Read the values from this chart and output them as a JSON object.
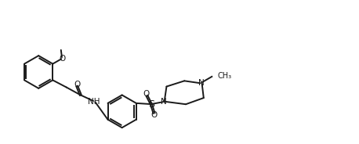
{
  "background": "#ffffff",
  "line_color": "#1a1a1a",
  "line_width": 1.4,
  "font_size": 7.5,
  "fig_width": 4.58,
  "fig_height": 1.84,
  "dpi": 100,
  "xlim": [
    0,
    100
  ],
  "ylim": [
    0,
    40
  ]
}
